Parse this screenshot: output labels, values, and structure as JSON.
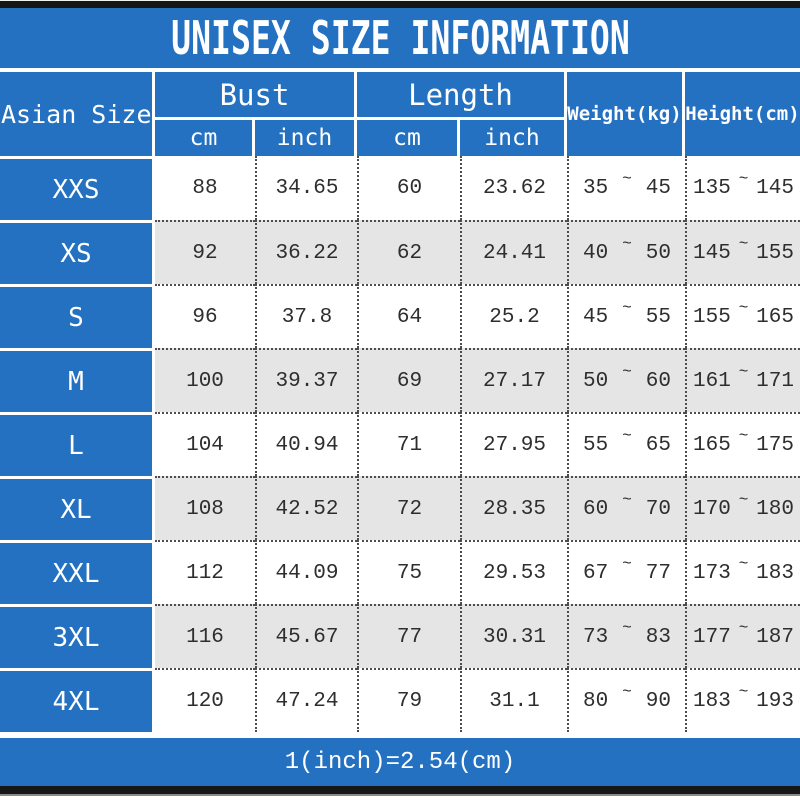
{
  "title": "UNISEX SIZE INFORMATION",
  "colors": {
    "primary_blue": "#2471c1",
    "row_shade_gray": "#e5e5e5",
    "bar_black": "#161616",
    "data_text": "#2e2e2e"
  },
  "table": {
    "headers": {
      "asian_size": "Asian Size",
      "bust": "Bust",
      "length": "Length",
      "weight": "Weight(kg)",
      "height": "Height(cm)",
      "cm": "cm",
      "inch": "inch"
    },
    "tilde": "~",
    "rows": [
      {
        "size": "XXS",
        "bust_cm": "88",
        "bust_inch": "34.65",
        "length_cm": "60",
        "length_inch": "23.62",
        "weight_min": "35",
        "weight_max": "45",
        "height_min": "135",
        "height_max": "145"
      },
      {
        "size": "XS",
        "bust_cm": "92",
        "bust_inch": "36.22",
        "length_cm": "62",
        "length_inch": "24.41",
        "weight_min": "40",
        "weight_max": "50",
        "height_min": "145",
        "height_max": "155"
      },
      {
        "size": "S",
        "bust_cm": "96",
        "bust_inch": "37.8",
        "length_cm": "64",
        "length_inch": "25.2",
        "weight_min": "45",
        "weight_max": "55",
        "height_min": "155",
        "height_max": "165"
      },
      {
        "size": "M",
        "bust_cm": "100",
        "bust_inch": "39.37",
        "length_cm": "69",
        "length_inch": "27.17",
        "weight_min": "50",
        "weight_max": "60",
        "height_min": "161",
        "height_max": "171"
      },
      {
        "size": "L",
        "bust_cm": "104",
        "bust_inch": "40.94",
        "length_cm": "71",
        "length_inch": "27.95",
        "weight_min": "55",
        "weight_max": "65",
        "height_min": "165",
        "height_max": "175"
      },
      {
        "size": "XL",
        "bust_cm": "108",
        "bust_inch": "42.52",
        "length_cm": "72",
        "length_inch": "28.35",
        "weight_min": "60",
        "weight_max": "70",
        "height_min": "170",
        "height_max": "180"
      },
      {
        "size": "XXL",
        "bust_cm": "112",
        "bust_inch": "44.09",
        "length_cm": "75",
        "length_inch": "29.53",
        "weight_min": "67",
        "weight_max": "77",
        "height_min": "173",
        "height_max": "183"
      },
      {
        "size": "3XL",
        "bust_cm": "116",
        "bust_inch": "45.67",
        "length_cm": "77",
        "length_inch": "30.31",
        "weight_min": "73",
        "weight_max": "83",
        "height_min": "177",
        "height_max": "187"
      },
      {
        "size": "4XL",
        "bust_cm": "120",
        "bust_inch": "47.24",
        "length_cm": "79",
        "length_inch": "31.1",
        "weight_min": "80",
        "weight_max": "90",
        "height_min": "183",
        "height_max": "193"
      }
    ]
  },
  "footer": {
    "note": "1(inch)=2.54(cm)"
  },
  "chart_data": {
    "type": "table",
    "title": "UNISEX SIZE INFORMATION",
    "columns": [
      "Asian Size",
      "Bust cm",
      "Bust inch",
      "Length cm",
      "Length inch",
      "Weight(kg) min",
      "Weight(kg) max",
      "Height(cm) min",
      "Height(cm) max"
    ],
    "rows": [
      [
        "XXS",
        88,
        34.65,
        60,
        23.62,
        35,
        45,
        135,
        145
      ],
      [
        "XS",
        92,
        36.22,
        62,
        24.41,
        40,
        50,
        145,
        155
      ],
      [
        "S",
        96,
        37.8,
        64,
        25.2,
        45,
        55,
        155,
        165
      ],
      [
        "M",
        100,
        39.37,
        69,
        27.17,
        50,
        60,
        161,
        171
      ],
      [
        "L",
        104,
        40.94,
        71,
        27.95,
        55,
        65,
        165,
        175
      ],
      [
        "XL",
        108,
        42.52,
        72,
        28.35,
        60,
        70,
        170,
        180
      ],
      [
        "XXL",
        112,
        44.09,
        75,
        29.53,
        67,
        77,
        173,
        183
      ],
      [
        "3XL",
        116,
        45.67,
        77,
        30.31,
        73,
        83,
        177,
        187
      ],
      [
        "4XL",
        120,
        47.24,
        79,
        31.1,
        80,
        90,
        183,
        193
      ]
    ],
    "footnote": "1(inch)=2.54(cm)"
  }
}
